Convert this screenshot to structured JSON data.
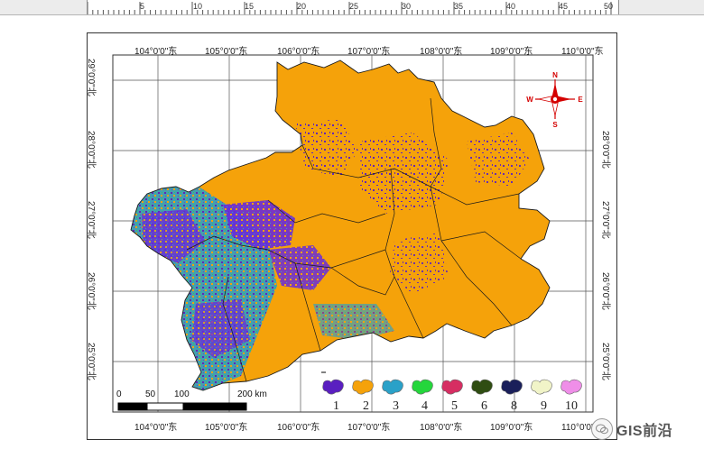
{
  "ruler": {
    "labels": [
      "5",
      "10",
      "15",
      "20",
      "25",
      "30",
      "35",
      "40",
      "45",
      "50"
    ]
  },
  "map": {
    "lon_top": [
      "104°0'0\"东",
      "105°0'0\"东",
      "106°0'0\"东",
      "107°0'0\"东",
      "108°0'0\"东",
      "109°0'0\"东",
      "110°0'0\"东"
    ],
    "lon_bottom": [
      "104°0'0\"东",
      "105°0'0\"东",
      "106°0'0\"东",
      "107°0'0\"东",
      "108°0'0\"东",
      "109°0'0\"东",
      "110°0'0\"东"
    ],
    "lat_left": [
      "29°0'0\"北",
      "28°0'0\"北",
      "27°0'0\"北",
      "26°0'0\"北",
      "25°0'0\"北"
    ],
    "lat_right": [
      "28°0'0\"北",
      "27°0'0\"北",
      "26°0'0\"北",
      "25°0'0\"北"
    ],
    "compass": {
      "n": "N",
      "s": "S",
      "e": "E",
      "w": "W"
    },
    "scalebar": {
      "ticks": [
        "0",
        "50",
        "100",
        "200 km"
      ]
    },
    "legend": {
      "items": [
        {
          "label": "1",
          "color": "#5a1fc0"
        },
        {
          "label": "2",
          "color": "#f5a20a"
        },
        {
          "label": "3",
          "color": "#2aa1c8"
        },
        {
          "label": "4",
          "color": "#25d63c"
        },
        {
          "label": "5",
          "color": "#d62e62"
        },
        {
          "label": "6",
          "color": "#2f4d12"
        },
        {
          "label": "8",
          "color": "#1a1f5a"
        },
        {
          "label": "9",
          "color": "#f1f4c8"
        },
        {
          "label": "10",
          "color": "#ef8ee8"
        }
      ]
    },
    "colors": {
      "base": "#f5a20a",
      "class1": "#5a1fc0",
      "class3": "#2aa1c8",
      "class4": "#3a9a5a",
      "boundary": "#1a1a1a",
      "grid": "#555555"
    }
  },
  "watermark": {
    "text": "GIS前沿"
  }
}
